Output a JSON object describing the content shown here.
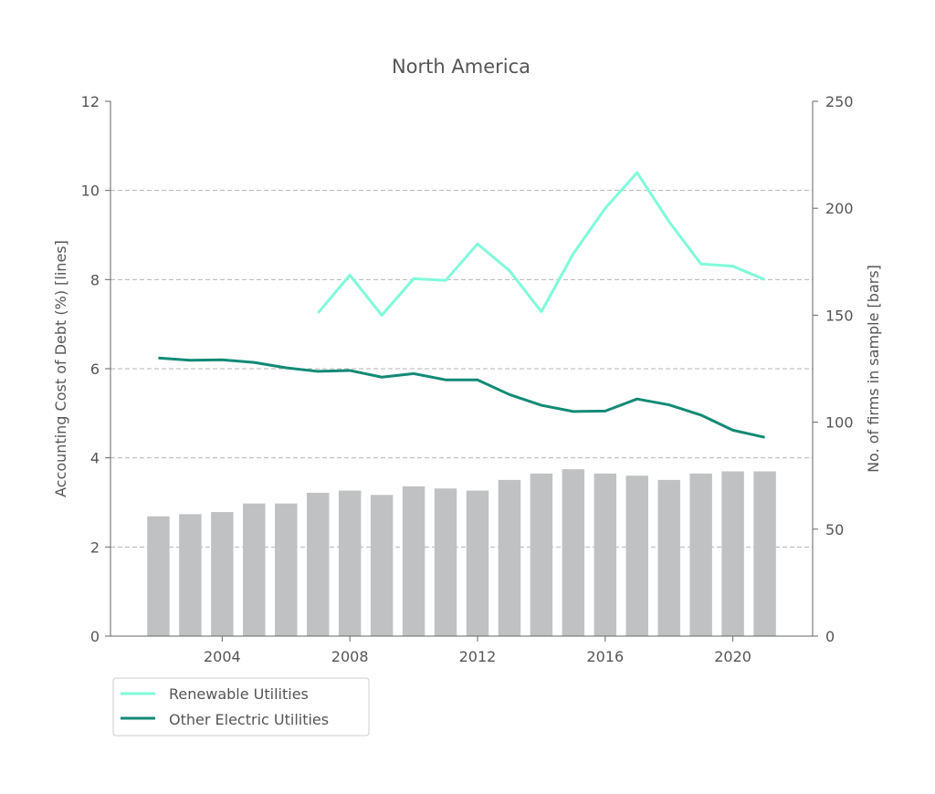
{
  "chart_data": {
    "type": "bar+line",
    "title": "North America",
    "ylabel_left": "Accounting Cost of Debt (%) [lines]",
    "ylabel_right": "No. of firms in sample  [bars]",
    "xlabel": "",
    "x_ticks": [
      "2004",
      "2008",
      "2012",
      "2016",
      "2020"
    ],
    "x_tick_values": [
      2004,
      2008,
      2012,
      2016,
      2020
    ],
    "xlim": [
      2000.5,
      2022.5
    ],
    "ylim_left": [
      0,
      12
    ],
    "ylim_right": [
      0,
      250
    ],
    "left_ticks": [
      "0",
      "2",
      "4",
      "6",
      "8",
      "10",
      "12"
    ],
    "right_ticks": [
      "0",
      "50",
      "100",
      "150",
      "200",
      "250"
    ],
    "grid": "horizontal dashed at left-axis major ticks",
    "legend_position": "below-left",
    "bars": {
      "axis": "right",
      "color": "#c0c1c3",
      "x": [
        2002,
        2003,
        2004,
        2005,
        2006,
        2007,
        2008,
        2009,
        2010,
        2011,
        2012,
        2013,
        2014,
        2015,
        2016,
        2017,
        2018,
        2019,
        2020,
        2021
      ],
      "values": [
        56,
        57,
        58,
        62,
        62,
        67,
        68,
        66,
        70,
        69,
        68,
        73,
        76,
        78,
        76,
        75,
        73,
        76,
        77,
        77
      ]
    },
    "series": [
      {
        "name": "Renewable Utilities",
        "axis": "left",
        "color": "#7ffbd9",
        "x": [
          2007,
          2008,
          2009,
          2010,
          2011,
          2012,
          2013,
          2014,
          2015,
          2016,
          2017,
          2018,
          2019,
          2020,
          2021
        ],
        "values": [
          7.25,
          8.1,
          7.2,
          8.02,
          7.98,
          8.8,
          8.2,
          7.28,
          8.58,
          9.6,
          10.4,
          9.3,
          8.35,
          8.3,
          8.0
        ]
      },
      {
        "name": "Other Electric Utilities",
        "axis": "left",
        "color": "#128a75",
        "x": [
          2002,
          2003,
          2004,
          2005,
          2006,
          2007,
          2008,
          2009,
          2010,
          2011,
          2012,
          2013,
          2014,
          2015,
          2016,
          2017,
          2018,
          2019,
          2020,
          2021
        ],
        "values": [
          6.24,
          6.19,
          6.2,
          6.14,
          6.02,
          5.94,
          5.96,
          5.81,
          5.89,
          5.75,
          5.75,
          5.42,
          5.18,
          5.04,
          5.05,
          5.32,
          5.19,
          4.96,
          4.62,
          4.46
        ]
      }
    ]
  }
}
